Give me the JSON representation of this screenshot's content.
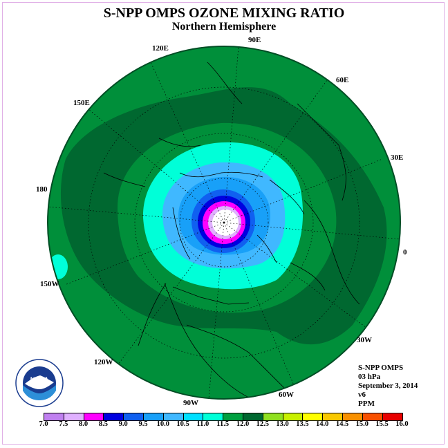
{
  "title": "S-NPP OMPS OZONE MIXING RATIO",
  "subtitle": "Northern Hemisphere",
  "longitude_labels": [
    "90E",
    "60E",
    "30E",
    "0",
    "30W",
    "60W",
    "90W",
    "120W",
    "150W",
    "180",
    "150E",
    "120E"
  ],
  "info": {
    "instrument": "S-NPP OMPS",
    "level": "03 hPa",
    "date": "September 3, 2014",
    "version": "v6",
    "units": "PPM"
  },
  "logo_text": "NOAA",
  "colorbar": {
    "ticks": [
      "7.0",
      "7.5",
      "8.0",
      "8.5",
      "9.0",
      "9.5",
      "10.0",
      "10.5",
      "11.0",
      "11.5",
      "12.0",
      "12.5",
      "13.0",
      "13.5",
      "14.0",
      "14.5",
      "15.0",
      "15.5",
      "16.0"
    ],
    "colors": [
      "#c080f0",
      "#e0b0ff",
      "#ff00ff",
      "#0000e0",
      "#1060f0",
      "#18a0f8",
      "#40b8ff",
      "#00e0ff",
      "#00ffd8",
      "#00a040",
      "#006830",
      "#90e020",
      "#c8f000",
      "#ffff00",
      "#f8c800",
      "#f89000",
      "#f85000",
      "#e80000",
      "#8b4513"
    ]
  },
  "map_data": {
    "projection": "north polar stereographic",
    "field": "ozone mixing ratio",
    "level_hpa": 3,
    "contour_bands": [
      {
        "range": "11.0-11.5",
        "color": "#008f3a",
        "region": "outer ring"
      },
      {
        "range": "11.5-12.0",
        "color": "#006830",
        "region": "mid latitudes band"
      },
      {
        "range": "10.5-11.0",
        "color": "#00ffd8",
        "region": "high latitudes"
      },
      {
        "range": "10.0-10.5",
        "color": "#40b8ff",
        "region": "polar"
      },
      {
        "range": "9.5-10.0",
        "color": "#18a0f8",
        "region": "polar"
      },
      {
        "range": "9.0-9.5",
        "color": "#1060f0",
        "region": "near pole"
      },
      {
        "range": "8.5-9.0",
        "color": "#0000e0",
        "region": "near pole"
      },
      {
        "range": "8.0-8.5",
        "color": "#ff00ff",
        "region": "pole ring"
      },
      {
        "range": "7.5-8.0",
        "color": "#e0b0ff",
        "region": "pole ring"
      }
    ]
  }
}
